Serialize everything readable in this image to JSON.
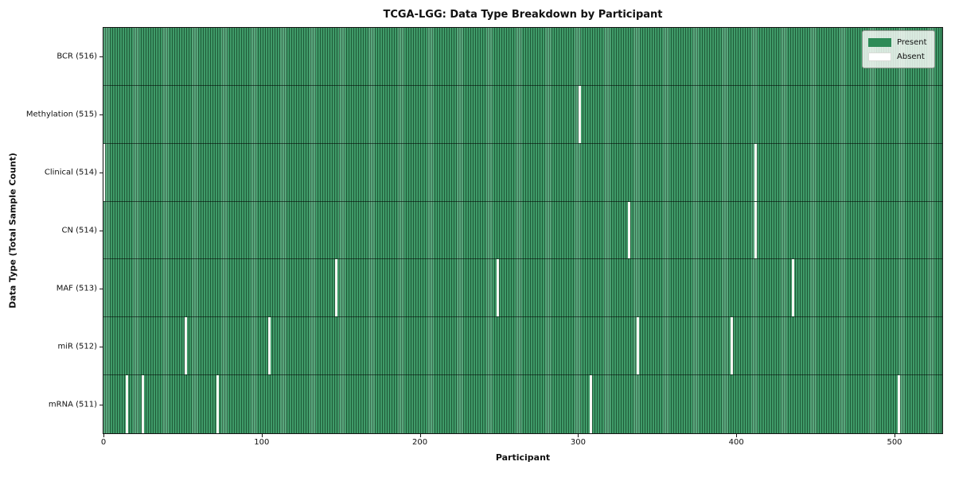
{
  "chart_data": {
    "type": "heatmap",
    "title": "TCGA-LGG: Data Type Breakdown by Participant",
    "xlabel": "Participant",
    "ylabel": "Data Type (Total Sample Count)",
    "x_ticks": [
      0,
      100,
      200,
      300,
      400,
      500
    ],
    "x_range": [
      0,
      516
    ],
    "total_participants": 516,
    "grid": false,
    "legend": {
      "position": "upper right",
      "entries": [
        {
          "label": "Present",
          "color": "#2e8b57"
        },
        {
          "label": "Absent",
          "color": "#ffffff"
        }
      ]
    },
    "rows": [
      {
        "label": "BCR (516)",
        "data_type": "BCR",
        "present_count": 516,
        "absent_participants": []
      },
      {
        "label": "Methylation (515)",
        "data_type": "Methylation",
        "present_count": 515,
        "absent_participants": [
          301
        ]
      },
      {
        "label": "Clinical (514)",
        "data_type": "Clinical",
        "present_count": 514,
        "absent_participants": [
          0,
          412
        ]
      },
      {
        "label": "CN (514)",
        "data_type": "CN",
        "present_count": 514,
        "absent_participants": [
          332,
          412
        ]
      },
      {
        "label": "MAF (513)",
        "data_type": "MAF",
        "present_count": 513,
        "absent_participants": [
          147,
          249,
          436
        ]
      },
      {
        "label": "miR (512)",
        "data_type": "miR",
        "present_count": 512,
        "absent_participants": [
          52,
          105,
          338,
          397
        ]
      },
      {
        "label": "mRNA (511)",
        "data_type": "mRNA",
        "present_count": 511,
        "absent_participants": [
          15,
          25,
          72,
          308,
          503
        ]
      }
    ]
  }
}
